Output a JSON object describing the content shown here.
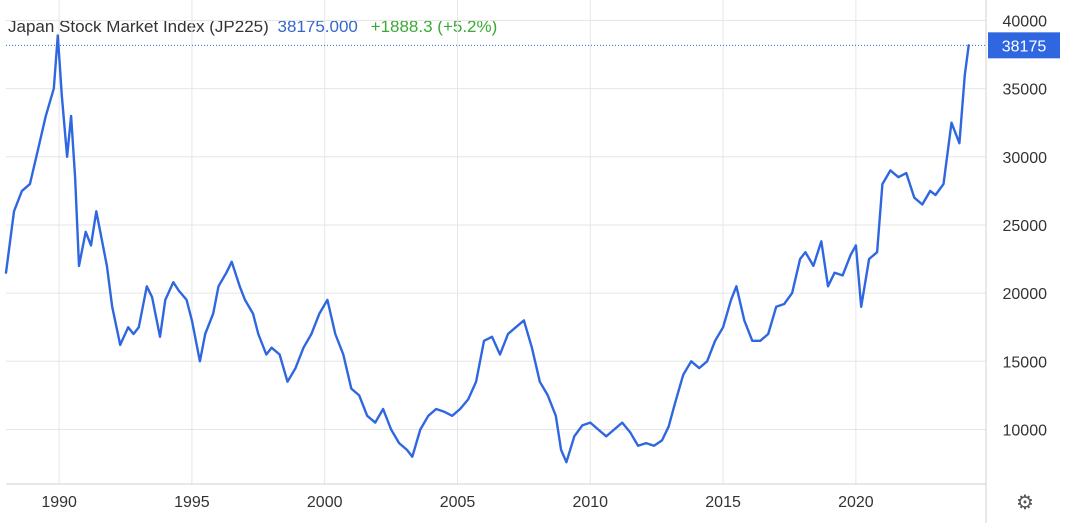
{
  "header": {
    "name": "Japan Stock Market Index (JP225)",
    "price": "38175.000",
    "change": "+1888.3 (+5.2%)"
  },
  "colors": {
    "line": "#2f67e0",
    "price_text": "#3366cc",
    "change_text": "#3aa935",
    "grid": "#e6e6e6",
    "badge": "#2f67e0"
  },
  "settings_icon": "gear-icon",
  "chart_data": {
    "type": "line",
    "title": "Japan Stock Market Index (JP225)",
    "x_ticks": [
      "1990",
      "1995",
      "2000",
      "2005",
      "2010",
      "2015",
      "2020"
    ],
    "y_ticks": [
      "10000",
      "15000",
      "20000",
      "25000",
      "30000",
      "35000",
      "40000"
    ],
    "xlim": [
      1988.0,
      2024.9
    ],
    "ylim": [
      6000,
      41500
    ],
    "grid": true,
    "last_value_label": "38175",
    "last_value": 38175,
    "series": [
      {
        "x": [
          1988.0,
          1988.3,
          1988.6,
          1988.9,
          1989.2,
          1989.5,
          1989.8,
          1989.95,
          1990.1,
          1990.3,
          1990.45,
          1990.6,
          1990.75,
          1991.0,
          1991.2,
          1991.4,
          1991.6,
          1991.8,
          1992.0,
          1992.3,
          1992.6,
          1992.8,
          1993.0,
          1993.3,
          1993.5,
          1993.8,
          1994.0,
          1994.3,
          1994.5,
          1994.8,
          1995.0,
          1995.3,
          1995.5,
          1995.8,
          1996.0,
          1996.3,
          1996.5,
          1996.8,
          1997.0,
          1997.3,
          1997.5,
          1997.8,
          1998.0,
          1998.3,
          1998.6,
          1998.9,
          1999.2,
          1999.5,
          1999.8,
          2000.1,
          2000.4,
          2000.7,
          2001.0,
          2001.3,
          2001.6,
          2001.9,
          2002.2,
          2002.5,
          2002.8,
          2003.1,
          2003.3,
          2003.6,
          2003.9,
          2004.2,
          2004.5,
          2004.8,
          2005.1,
          2005.4,
          2005.7,
          2006.0,
          2006.3,
          2006.6,
          2006.9,
          2007.2,
          2007.5,
          2007.8,
          2008.1,
          2008.4,
          2008.7,
          2008.9,
          2009.1,
          2009.4,
          2009.7,
          2010.0,
          2010.3,
          2010.6,
          2010.9,
          2011.2,
          2011.5,
          2011.8,
          2012.1,
          2012.4,
          2012.7,
          2012.95,
          2013.2,
          2013.5,
          2013.8,
          2014.1,
          2014.4,
          2014.7,
          2015.0,
          2015.3,
          2015.5,
          2015.8,
          2016.1,
          2016.4,
          2016.7,
          2017.0,
          2017.3,
          2017.6,
          2017.9,
          2018.1,
          2018.4,
          2018.7,
          2018.95,
          2019.2,
          2019.5,
          2019.8,
          2020.0,
          2020.2,
          2020.5,
          2020.8,
          2021.0,
          2021.3,
          2021.6,
          2021.9,
          2022.2,
          2022.5,
          2022.8,
          2023.0,
          2023.3,
          2023.6,
          2023.9,
          2024.1,
          2024.25
        ],
        "y": [
          21500,
          26000,
          27500,
          28000,
          30500,
          33000,
          35000,
          38900,
          34500,
          30000,
          33000,
          28500,
          22000,
          24500,
          23500,
          26000,
          24000,
          22000,
          19000,
          16200,
          17500,
          17000,
          17500,
          20500,
          19700,
          16800,
          19500,
          20800,
          20200,
          19500,
          18000,
          15000,
          17000,
          18500,
          20500,
          21500,
          22300,
          20500,
          19500,
          18500,
          17000,
          15500,
          16000,
          15500,
          13500,
          14500,
          16000,
          17000,
          18500,
          19500,
          17000,
          15500,
          13000,
          12500,
          11000,
          10500,
          11500,
          10000,
          9000,
          8500,
          8000,
          10000,
          11000,
          11500,
          11300,
          11000,
          11500,
          12200,
          13500,
          16500,
          16800,
          15500,
          17000,
          17500,
          18000,
          16000,
          13500,
          12500,
          11000,
          8500,
          7600,
          9500,
          10300,
          10500,
          10000,
          9500,
          10000,
          10500,
          9800,
          8800,
          9000,
          8800,
          9200,
          10200,
          12000,
          14000,
          15000,
          14500,
          15000,
          16500,
          17500,
          19500,
          20500,
          18000,
          16500,
          16500,
          17000,
          19000,
          19200,
          20000,
          22500,
          23000,
          22000,
          23800,
          20500,
          21500,
          21300,
          22800,
          23500,
          19000,
          22500,
          23000,
          28000,
          29000,
          28500,
          28800,
          27000,
          26500,
          27500,
          27200,
          28000,
          32500,
          31000,
          36000,
          38175
        ]
      }
    ]
  }
}
